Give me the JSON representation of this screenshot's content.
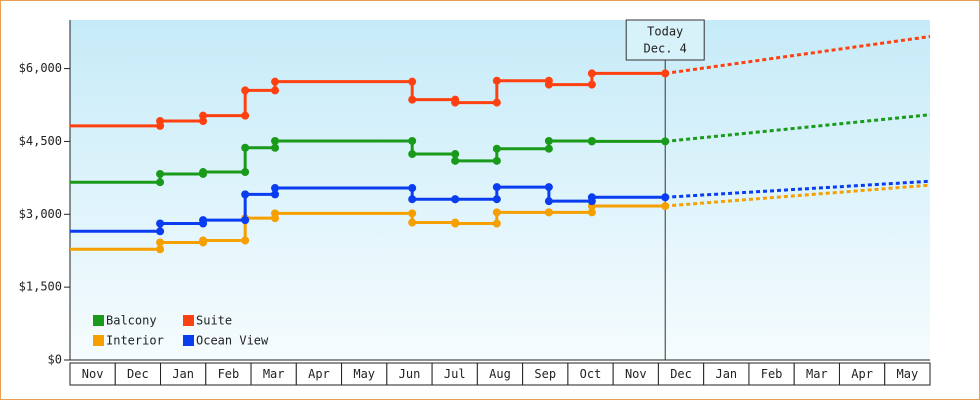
{
  "chart_data": {
    "type": "step-line",
    "categories": [
      "Nov",
      "Dec",
      "Jan",
      "Feb",
      "Mar",
      "Apr",
      "May",
      "Jun",
      "Jul",
      "Aug",
      "Sep",
      "Oct",
      "Nov",
      "Dec",
      "Jan",
      "Feb",
      "Mar",
      "Apr",
      "May"
    ],
    "xlim": [
      0,
      19
    ],
    "x": [
      0,
      1.99,
      2.94,
      3.87,
      4.53,
      7.56,
      8.51,
      9.43,
      10.58,
      11.53,
      13.15
    ],
    "forecast_x": [
      13.15,
      19
    ],
    "ylim": [
      0,
      7000
    ],
    "yticks": [
      {
        "value": 0,
        "label": "$0"
      },
      {
        "value": 1500,
        "label": "$1,500"
      },
      {
        "value": 3000,
        "label": "$3,000"
      },
      {
        "value": 4500,
        "label": "$4,500"
      },
      {
        "value": 6000,
        "label": "$6,000"
      }
    ],
    "today": {
      "x": 13.15,
      "label": "Today",
      "date": "Dec. 4"
    },
    "legend": "bottom-left",
    "series": [
      {
        "name": "Balcony",
        "color": "#1a9a1a",
        "values": [
          3660,
          3830,
          3870,
          4370,
          4510,
          4240,
          4100,
          4350,
          4510,
          4500,
          4500
        ],
        "forecast": [
          4500,
          5050
        ]
      },
      {
        "name": "Suite",
        "color": "#ff4010",
        "values": [
          4820,
          4920,
          5030,
          5550,
          5730,
          5360,
          5300,
          5750,
          5670,
          5900,
          5900
        ],
        "forecast": [
          5900,
          6660
        ]
      },
      {
        "name": "Interior",
        "color": "#f5a000",
        "values": [
          2280,
          2420,
          2460,
          2920,
          3020,
          2830,
          2810,
          3040,
          3040,
          3170,
          3170
        ],
        "forecast": [
          3170,
          3600
        ]
      },
      {
        "name": "Ocean View",
        "color": "#0a3cf0",
        "values": [
          2650,
          2810,
          2880,
          3410,
          3540,
          3310,
          3310,
          3560,
          3270,
          3350,
          3350
        ],
        "forecast": [
          3350,
          3680
        ]
      }
    ]
  }
}
